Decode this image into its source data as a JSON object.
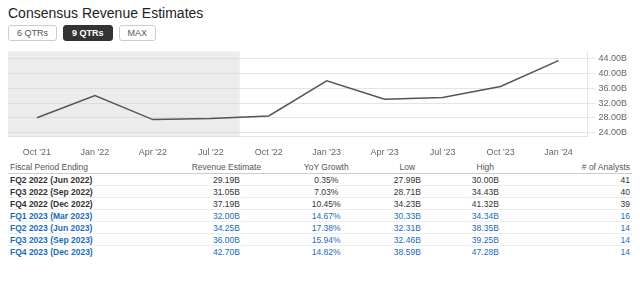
{
  "chart_data": {
    "type": "line",
    "title": "Consensus Revenue Estimates",
    "categories": [
      "Oct '21",
      "Jan '22",
      "Apr '22",
      "Jul '22",
      "Oct '22",
      "Jan '23",
      "Apr '23",
      "Jul '23",
      "Oct '23",
      "Jan '24"
    ],
    "values": [
      28000,
      34000,
      27500,
      27800,
      28500,
      38000,
      33000,
      33500,
      36500,
      43500
    ],
    "color": "#555555",
    "ylim": [
      23000,
      46000
    ],
    "yticks": [
      {
        "value": 24000,
        "label": "24.00B"
      },
      {
        "value": 28000,
        "label": "28.00B"
      },
      {
        "value": 32000,
        "label": "32.00B"
      },
      {
        "value": 36000,
        "label": "36.00B"
      },
      {
        "value": 40000,
        "label": "40.00B"
      },
      {
        "value": 44000,
        "label": "44.00B"
      }
    ],
    "grid": true,
    "shaded_region": {
      "from": "Oct '21",
      "to": "Jul '22"
    }
  },
  "buttons": [
    "6 QTRs",
    "9 QTRs",
    "MAX"
  ],
  "active_button": "9 QTRs",
  "table": {
    "header": [
      "Fiscal Period Ending",
      "Revenue Estimate",
      "YoY Growth",
      "Low",
      "High",
      "# of Analysts"
    ],
    "rows": [
      [
        "FQ2 2022 (Jun 2022)",
        "29.19B",
        "0.35%",
        "27.99B",
        "30.00B",
        "41"
      ],
      [
        "FQ3 2022 (Sep 2022)",
        "31.05B",
        "7.03%",
        "28.71B",
        "34.43B",
        "40"
      ],
      [
        "FQ4 2022 (Dec 2022)",
        "37.19B",
        "10.45%",
        "34.23B",
        "41.32B",
        "39"
      ],
      [
        "FQ1 2023 (Mar 2023)",
        "32.00B",
        "14.67%",
        "30.33B",
        "34.34B",
        "16"
      ],
      [
        "FQ2 2023 (Jun 2023)",
        "34.25B",
        "17.38%",
        "32.31B",
        "38.35B",
        "14"
      ],
      [
        "FQ3 2023 (Sep 2023)",
        "36.00B",
        "15.94%",
        "32.46B",
        "39.25B",
        "14"
      ],
      [
        "FQ4 2023 (Dec 2023)",
        "42.70B",
        "14.82%",
        "38.59B",
        "47.28B",
        "14"
      ]
    ],
    "highlight_rows": [
      3,
      4,
      5,
      6
    ],
    "highlight_color": "#1a6bc4"
  }
}
